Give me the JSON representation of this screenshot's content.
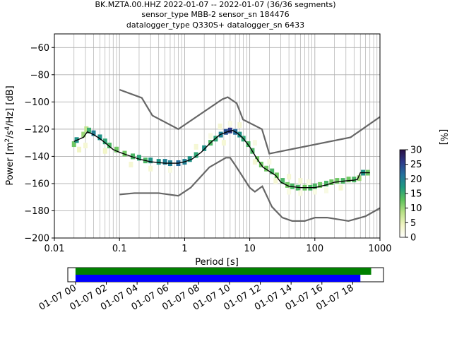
{
  "chart_data": {
    "type": "heatmap",
    "title_lines": [
      "BK.MZTA.00.HHZ   2022-01-07 -- 2022-01-07  (36/36 segments)",
      "sensor_type MBB-2 sensor_sn 184476",
      "datalogger_type Q330S+ datalogger_sn 6433"
    ],
    "xlabel": "Period [s]",
    "ylabel_parts": [
      "Power [m",
      "2",
      "/s",
      "4",
      "/Hz] [dB]"
    ],
    "xscale": "log",
    "xlim": [
      0.01,
      1000
    ],
    "ylim": [
      -200,
      -50
    ],
    "xtick_values": [
      0.01,
      0.1,
      1,
      10,
      100,
      1000
    ],
    "xtick_labels": [
      "0.01",
      "0.1",
      "1",
      "10",
      "100",
      "1000"
    ],
    "ytick_values": [
      -200,
      -180,
      -160,
      -140,
      -120,
      -100,
      -80,
      -60
    ],
    "ytick_labels": [
      "−200",
      "−180",
      "−160",
      "−140",
      "−120",
      "−100",
      "−80",
      "−60"
    ],
    "grid": true,
    "colorbar": {
      "label": "[%]",
      "ticks": [
        0,
        5,
        10,
        15,
        20,
        25,
        30
      ],
      "tick_labels": [
        "0",
        "5",
        "10",
        "15",
        "20",
        "25",
        "30"
      ],
      "range": [
        0,
        30
      ],
      "colormap_stops": [
        "#ffffff",
        "#f1f4c2",
        "#b8e185",
        "#5dc25b",
        "#1e9a80",
        "#23719d",
        "#2d3a8a",
        "#2a0f45"
      ]
    },
    "mode_curve": {
      "name": "mode",
      "color": "#000000",
      "points": [
        [
          0.02,
          -129
        ],
        [
          0.025,
          -127
        ],
        [
          0.028,
          -126
        ],
        [
          0.032,
          -122
        ],
        [
          0.036,
          -123
        ],
        [
          0.04,
          -124
        ],
        [
          0.05,
          -127
        ],
        [
          0.06,
          -130
        ],
        [
          0.08,
          -135
        ],
        [
          0.1,
          -137
        ],
        [
          0.15,
          -140
        ],
        [
          0.2,
          -142
        ],
        [
          0.3,
          -144
        ],
        [
          0.5,
          -145
        ],
        [
          0.8,
          -145
        ],
        [
          1.0,
          -144
        ],
        [
          1.3,
          -142
        ],
        [
          1.8,
          -137
        ],
        [
          2.5,
          -130
        ],
        [
          3.5,
          -124
        ],
        [
          4.5,
          -122
        ],
        [
          5.5,
          -121
        ],
        [
          6.5,
          -123
        ],
        [
          8,
          -127
        ],
        [
          10,
          -133
        ],
        [
          13,
          -142
        ],
        [
          16,
          -148
        ],
        [
          20,
          -151
        ],
        [
          25,
          -154
        ],
        [
          30,
          -159
        ],
        [
          40,
          -162
        ],
        [
          60,
          -163
        ],
        [
          100,
          -163
        ],
        [
          150,
          -161
        ],
        [
          200,
          -159
        ],
        [
          300,
          -158
        ],
        [
          400,
          -157.5
        ],
        [
          450,
          -157
        ],
        [
          500,
          -152
        ],
        [
          700,
          -152
        ]
      ]
    },
    "heat_cells": [
      [
        0.02,
        -131,
        12
      ],
      [
        0.022,
        -128,
        18
      ],
      [
        0.028,
        -124,
        10
      ],
      [
        0.031,
        -120,
        8
      ],
      [
        0.034,
        -121,
        15
      ],
      [
        0.04,
        -123,
        20
      ],
      [
        0.05,
        -126,
        18
      ],
      [
        0.06,
        -129,
        16
      ],
      [
        0.07,
        -132,
        14
      ],
      [
        0.09,
        -135,
        12
      ],
      [
        0.12,
        -138,
        12
      ],
      [
        0.16,
        -140,
        14
      ],
      [
        0.2,
        -141,
        16
      ],
      [
        0.25,
        -143,
        14
      ],
      [
        0.3,
        -143,
        18
      ],
      [
        0.4,
        -144,
        18
      ],
      [
        0.5,
        -144,
        20
      ],
      [
        0.6,
        -145,
        20
      ],
      [
        0.8,
        -145,
        22
      ],
      [
        1.0,
        -144,
        20
      ],
      [
        1.2,
        -142,
        18
      ],
      [
        1.5,
        -139,
        16
      ],
      [
        2.0,
        -134,
        18
      ],
      [
        2.5,
        -130,
        14
      ],
      [
        3.0,
        -127,
        16
      ],
      [
        3.6,
        -124,
        20
      ],
      [
        4.3,
        -122,
        24
      ],
      [
        5.0,
        -121,
        26
      ],
      [
        6.0,
        -122,
        22
      ],
      [
        7.0,
        -124,
        18
      ],
      [
        8.0,
        -127,
        16
      ],
      [
        9.5,
        -131,
        14
      ],
      [
        11,
        -136,
        14
      ],
      [
        13,
        -142,
        12
      ],
      [
        15,
        -146,
        12
      ],
      [
        18,
        -149,
        12
      ],
      [
        22,
        -151,
        14
      ],
      [
        26,
        -154,
        12
      ],
      [
        32,
        -158,
        14
      ],
      [
        38,
        -161,
        12
      ],
      [
        45,
        -162,
        14
      ],
      [
        55,
        -163,
        14
      ],
      [
        70,
        -163,
        12
      ],
      [
        85,
        -163,
        14
      ],
      [
        100,
        -162,
        14
      ],
      [
        120,
        -161,
        12
      ],
      [
        150,
        -160,
        14
      ],
      [
        180,
        -159,
        12
      ],
      [
        220,
        -158,
        12
      ],
      [
        270,
        -158,
        14
      ],
      [
        330,
        -157,
        12
      ],
      [
        400,
        -157,
        14
      ],
      [
        480,
        -156,
        10
      ],
      [
        550,
        -152,
        18
      ],
      [
        650,
        -152,
        12
      ],
      [
        0.024,
        -135,
        4
      ],
      [
        0.03,
        -132,
        3
      ],
      [
        0.06,
        -136,
        4
      ],
      [
        0.15,
        -146,
        3
      ],
      [
        0.3,
        -149,
        3
      ],
      [
        0.6,
        -150,
        2
      ],
      [
        1.5,
        -133,
        3
      ],
      [
        2.5,
        -125,
        2
      ],
      [
        3.5,
        -118,
        3
      ],
      [
        5,
        -116,
        2
      ],
      [
        7,
        -117,
        3
      ],
      [
        12,
        -130,
        2
      ],
      [
        20,
        -144,
        2
      ],
      [
        40,
        -155,
        3
      ],
      [
        60,
        -158,
        3
      ],
      [
        80,
        -159,
        2
      ],
      [
        150,
        -165,
        2
      ],
      [
        250,
        -163,
        3
      ],
      [
        25,
        -158,
        3
      ],
      [
        40,
        -166,
        2
      ],
      [
        60,
        -167,
        2
      ],
      [
        100,
        -166,
        2
      ],
      [
        12,
        -144,
        3
      ],
      [
        4,
        -130,
        3
      ]
    ],
    "noise_models": [
      {
        "name": "NHNM",
        "color": "#666666",
        "points": [
          [
            0.1,
            -91
          ],
          [
            0.22,
            -97
          ],
          [
            0.32,
            -110
          ],
          [
            0.8,
            -120
          ],
          [
            3.8,
            -98
          ],
          [
            4.6,
            -96.5
          ],
          [
            6.3,
            -101
          ],
          [
            7.9,
            -113
          ],
          [
            15.4,
            -120
          ],
          [
            20,
            -138
          ],
          [
            354,
            -126
          ],
          [
            1000,
            -111
          ]
        ]
      },
      {
        "name": "NLNM",
        "color": "#666666",
        "points": [
          [
            0.1,
            -168
          ],
          [
            0.17,
            -167
          ],
          [
            0.4,
            -167
          ],
          [
            0.8,
            -169
          ],
          [
            1.24,
            -163
          ],
          [
            2.4,
            -148
          ],
          [
            4.3,
            -141
          ],
          [
            5,
            -141
          ],
          [
            6,
            -146.5
          ],
          [
            10,
            -163
          ],
          [
            12,
            -166
          ],
          [
            15.6,
            -162
          ],
          [
            21.9,
            -177
          ],
          [
            31.6,
            -185
          ],
          [
            45,
            -187.5
          ],
          [
            70,
            -187.5
          ],
          [
            101,
            -185
          ],
          [
            154,
            -185
          ],
          [
            328,
            -187.5
          ],
          [
            600,
            -184
          ],
          [
            1000,
            -178
          ]
        ]
      }
    ],
    "data_availability": {
      "time_ticks": [
        "01-07 00",
        "01-07 02",
        "01-07 04",
        "01-07 06",
        "01-07 08",
        "01-07 10",
        "01-07 12",
        "01-07 14",
        "01-07 16",
        "01-07 18"
      ],
      "time_range_hours": [
        -0.5,
        20
      ],
      "bars": [
        {
          "name": "data",
          "color": "#008000",
          "start_hour": 0,
          "end_hour": 19.2
        },
        {
          "name": "psd",
          "color": "#0000ff",
          "start_hour": 0,
          "end_hour": 18.5
        }
      ]
    }
  }
}
